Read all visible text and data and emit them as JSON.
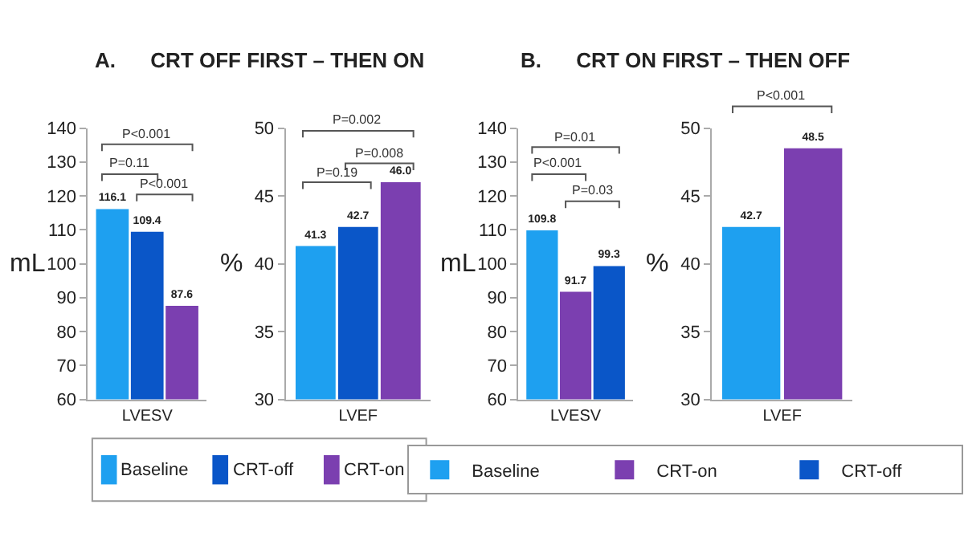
{
  "chart_data": [
    {
      "type": "bar",
      "title": "A.      CRT OFF FIRST – THEN ON",
      "ylabel": "mL",
      "categories": [
        "LVESV"
      ],
      "series": [
        {
          "name": "Baseline",
          "color": "#1ea0f0",
          "values": [
            116.1
          ]
        },
        {
          "name": "CRT-off",
          "color": "#0a56c8",
          "values": [
            109.4
          ]
        },
        {
          "name": "CRT-on",
          "color": "#7b3fb0",
          "values": [
            87.6
          ]
        }
      ],
      "ylim": [
        60,
        140
      ],
      "yticks": [
        60,
        70,
        80,
        90,
        100,
        110,
        120,
        130,
        140
      ],
      "data_labels": true,
      "legend": "bottom",
      "annotations": [
        "P<0.001",
        "P=0.11",
        "P<0.001"
      ]
    },
    {
      "type": "bar",
      "ylabel": "%",
      "categories": [
        "LVEF"
      ],
      "series": [
        {
          "color": "#1ea0f0",
          "values": [
            41.3
          ]
        },
        {
          "color": "#0a56c8",
          "values": [
            42.7
          ]
        },
        {
          "color": "#7b3fb0",
          "values": [
            46.0
          ],
          "value_labels": [
            "46.0"
          ]
        }
      ],
      "ylim": [
        30,
        50
      ],
      "yticks": [
        30,
        35,
        40,
        45,
        50
      ],
      "data_labels": true,
      "annotations": [
        "P=0.002",
        "P=0.008",
        "P=0.19"
      ]
    },
    {
      "type": "bar",
      "title": "B.      CRT ON FIRST – THEN OFF",
      "ylabel": "mL",
      "categories": [
        "LVESV"
      ],
      "series": [
        {
          "name": "Baseline",
          "color": "#1ea0f0",
          "values": [
            109.8
          ]
        },
        {
          "name": "CRT-on",
          "color": "#7b3fb0",
          "values": [
            91.7
          ]
        },
        {
          "name": "CRT-off",
          "color": "#0a56c8",
          "values": [
            99.3
          ]
        }
      ],
      "ylim": [
        60,
        140
      ],
      "yticks": [
        60,
        70,
        80,
        90,
        100,
        110,
        120,
        130,
        140
      ],
      "data_labels": true,
      "legend": "bottom",
      "annotations": [
        "P=0.01",
        "P<0.001",
        "P=0.03"
      ]
    },
    {
      "type": "bar",
      "ylabel": "%",
      "categories": [
        "LVEF"
      ],
      "series": [
        {
          "color": "#1ea0f0",
          "values": [
            42.7
          ]
        },
        {
          "color": "#7b3fb0",
          "values": [
            48.5
          ]
        }
      ],
      "ylim": [
        30,
        50
      ],
      "yticks": [
        30,
        35,
        40,
        45,
        50
      ],
      "data_labels": true,
      "annotations": [
        "P<0.001"
      ]
    }
  ]
}
